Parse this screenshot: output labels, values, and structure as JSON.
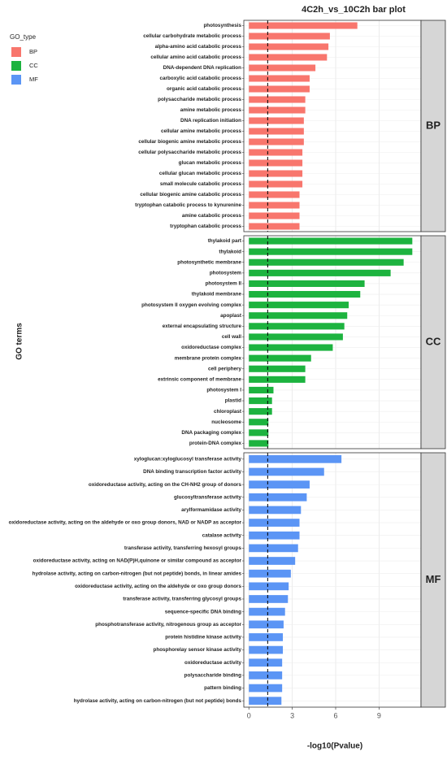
{
  "chart_data": {
    "type": "bar",
    "title": "4C2h_vs_10C2h bar plot",
    "x_label": "-log10(Pvalue)",
    "y_label": "GO terms",
    "legend_title": "GO_type",
    "xlim": [
      -0.35,
      11.9
    ],
    "xticks": [
      0,
      3,
      6,
      9
    ],
    "threshold": 1.3,
    "grid": true,
    "series": [
      {
        "name": "BP",
        "color": "#f8766d",
        "categories": [
          "photosynthesis",
          "cellular carbohydrate metabolic process",
          "alpha-amino acid catabolic process",
          "cellular amino acid catabolic process",
          "DNA-dependent DNA replication",
          "carboxylic acid catabolic process",
          "organic acid catabolic process",
          "polysaccharide metabolic process",
          "amine metabolic process",
          "DNA replication initiation",
          "cellular amine metabolic process",
          "cellular biogenic amine metabolic process",
          "cellular polysaccharide metabolic process",
          "glucan metabolic process",
          "cellular glucan metabolic process",
          "small molecule catabolic process",
          "cellular biogenic amine catabolic process",
          "tryptophan catabolic process to kynurenine",
          "amine catabolic process",
          "tryptophan catabolic process"
        ],
        "values": [
          7.5,
          5.6,
          5.5,
          5.4,
          4.6,
          4.2,
          4.2,
          3.9,
          3.9,
          3.8,
          3.8,
          3.8,
          3.7,
          3.7,
          3.7,
          3.7,
          3.5,
          3.5,
          3.5,
          3.5
        ]
      },
      {
        "name": "CC",
        "color": "#1db33f",
        "categories": [
          "thylakoid part",
          "thylakoid",
          "photosynthetic membrane",
          "photosystem",
          "photosystem II",
          "thylakoid membrane",
          "photosystem II oxygen evolving complex",
          "apoplast",
          "external encapsulating structure",
          "cell wall",
          "oxidoreductase complex",
          "membrane protein complex",
          "cell periphery",
          "extrinsic component of membrane",
          "photosystem I",
          "plastid",
          "chloroplast",
          "nucleosome",
          "DNA packaging complex",
          "protein-DNA complex"
        ],
        "values": [
          11.3,
          11.3,
          10.7,
          9.8,
          8.0,
          7.7,
          6.9,
          6.8,
          6.6,
          6.5,
          5.8,
          4.3,
          3.9,
          3.9,
          1.7,
          1.6,
          1.6,
          1.35,
          1.35,
          1.35
        ]
      },
      {
        "name": "MF",
        "color": "#5b95f5",
        "categories": [
          "xyloglucan:xyloglucosyl transferase activity",
          "DNA binding transcription factor activity",
          "oxidoreductase activity, acting on the CH-NH2 group of donors",
          "glucosyltransferase activity",
          "arylformamidase activity",
          "oxidoreductase activity, acting on the aldehyde or oxo group donors, NAD or NADP as acceptor",
          "catalase activity",
          "transferase activity, transferring hexosyl groups",
          "oxidoreductase activity, acting on NAD(P)H,quinone or similar compound as acceptor",
          "hydrolase activity, acting on carbon-nitrogen (but not peptide) bonds, in linear amides",
          "oxidoreductase activity, acting on the aldehyde or oxo group donors",
          "transferase activity, transferring glycosyl groups",
          "sequence-specific DNA binding",
          "phosphotransferase activity, nitrogenous group as acceptor",
          "protein histidine kinase activity",
          "phosphorelay sensor kinase activity",
          "oxidoreductase activity",
          "polysaccharide binding",
          "pattern binding",
          "hydrolase activity, acting on carbon-nitrogen (but not peptide) bonds"
        ],
        "values": [
          6.4,
          5.2,
          4.2,
          4.0,
          3.6,
          3.5,
          3.5,
          3.4,
          3.2,
          2.9,
          2.75,
          2.7,
          2.5,
          2.4,
          2.35,
          2.35,
          2.3,
          2.3,
          2.3,
          2.25
        ]
      }
    ]
  }
}
